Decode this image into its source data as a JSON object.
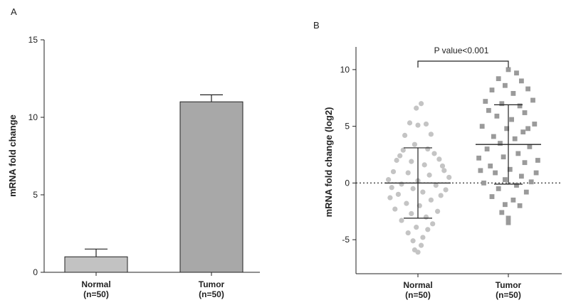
{
  "chart_data": [
    {
      "panel_label": "A",
      "type": "bar",
      "ylabel": "mRNA fold change",
      "ylim": [
        0,
        15
      ],
      "yticks": [
        0,
        5,
        10,
        15
      ],
      "categories": [
        "Normal\n(n=50)",
        "Tumor\n(n=50)"
      ],
      "values": [
        1.0,
        11.0
      ],
      "errors": [
        0.5,
        0.45
      ],
      "bar_colors": [
        "#c2c2c2",
        "#a8a8a8"
      ],
      "grid": false
    },
    {
      "panel_label": "B",
      "type": "scatter",
      "ylabel": "mRNA fold change (log2)",
      "ylim": [
        -8,
        12
      ],
      "yticks": [
        -5,
        0,
        5,
        10
      ],
      "categories": [
        "Normal\n(n=50)",
        "Tumor\n(n=50)"
      ],
      "annotation": "P value<0.001",
      "reference_line": 0,
      "grid": false,
      "groups": [
        {
          "marker": "circle",
          "color": "#c4c4c4",
          "mean": 0.0,
          "sd": 3.1,
          "points": [
            [
              0.02,
              7.0
            ],
            [
              -0.01,
              6.6
            ],
            [
              -0.05,
              5.3
            ],
            [
              0.05,
              5.2
            ],
            [
              0.0,
              5.1
            ],
            [
              -0.08,
              4.2
            ],
            [
              0.08,
              4.3
            ],
            [
              -0.02,
              3.4
            ],
            [
              0.06,
              3.0
            ],
            [
              -0.09,
              2.9
            ],
            [
              0.1,
              2.6
            ],
            [
              -0.13,
              2.0
            ],
            [
              0.13,
              2.1
            ],
            [
              -0.04,
              1.9
            ],
            [
              0.04,
              1.6
            ],
            [
              -0.15,
              1.0
            ],
            [
              0.16,
              1.1
            ],
            [
              -0.06,
              0.9
            ],
            [
              0.07,
              0.7
            ],
            [
              0.19,
              0.5
            ],
            [
              -0.18,
              0.3
            ],
            [
              0.0,
              0.2
            ],
            [
              -0.1,
              -0.1
            ],
            [
              0.11,
              -0.2
            ],
            [
              -0.03,
              -0.5
            ],
            [
              0.03,
              -0.8
            ],
            [
              -0.12,
              -1.0
            ],
            [
              0.14,
              -1.1
            ],
            [
              -0.17,
              -1.3
            ],
            [
              0.08,
              -1.5
            ],
            [
              -0.07,
              -1.8
            ],
            [
              0.01,
              -2.0
            ],
            [
              -0.14,
              -2.3
            ],
            [
              0.12,
              -2.5
            ],
            [
              -0.04,
              -2.7
            ],
            [
              0.05,
              -3.0
            ],
            [
              -0.1,
              -3.3
            ],
            [
              0.09,
              -3.6
            ],
            [
              -0.01,
              -3.9
            ],
            [
              0.06,
              -4.1
            ],
            [
              -0.06,
              -4.4
            ],
            [
              0.03,
              -4.8
            ],
            [
              -0.03,
              -5.1
            ],
            [
              0.02,
              -5.5
            ],
            [
              -0.02,
              -5.9
            ],
            [
              0.0,
              -6.1
            ],
            [
              0.15,
              1.5
            ],
            [
              -0.16,
              -0.4
            ],
            [
              0.17,
              -0.6
            ],
            [
              -0.11,
              2.4
            ]
          ]
        },
        {
          "marker": "square",
          "color": "#9a9a9a",
          "mean": 3.4,
          "sd": 3.5,
          "points": [
            [
              0.0,
              10.0
            ],
            [
              0.05,
              9.7
            ],
            [
              -0.06,
              9.2
            ],
            [
              0.08,
              9.0
            ],
            [
              -0.02,
              8.6
            ],
            [
              0.12,
              8.3
            ],
            [
              -0.1,
              8.2
            ],
            [
              0.03,
              7.9
            ],
            [
              -0.14,
              7.2
            ],
            [
              0.15,
              7.3
            ],
            [
              -0.04,
              7.0
            ],
            [
              0.07,
              6.8
            ],
            [
              -0.12,
              6.4
            ],
            [
              0.1,
              6.2
            ],
            [
              -0.07,
              5.9
            ],
            [
              0.02,
              5.6
            ],
            [
              -0.16,
              5.0
            ],
            [
              0.16,
              5.2
            ],
            [
              -0.01,
              4.8
            ],
            [
              0.09,
              4.5
            ],
            [
              -0.09,
              4.1
            ],
            [
              0.04,
              3.9
            ],
            [
              -0.05,
              3.5
            ],
            [
              0.13,
              3.2
            ],
            [
              -0.13,
              3.0
            ],
            [
              0.18,
              2.0
            ],
            [
              -0.18,
              2.2
            ],
            [
              0.06,
              2.6
            ],
            [
              -0.03,
              2.3
            ],
            [
              0.1,
              1.8
            ],
            [
              -0.11,
              1.5
            ],
            [
              0.01,
              1.2
            ],
            [
              -0.08,
              0.9
            ],
            [
              0.08,
              0.6
            ],
            [
              -0.02,
              0.3
            ],
            [
              0.14,
              0.1
            ],
            [
              -0.15,
              0.0
            ],
            [
              0.05,
              -0.2
            ],
            [
              -0.06,
              -0.5
            ],
            [
              0.11,
              -0.8
            ],
            [
              -0.1,
              -1.2
            ],
            [
              0.03,
              -1.5
            ],
            [
              -0.02,
              -1.9
            ],
            [
              0.07,
              -2.0
            ],
            [
              -0.04,
              -2.6
            ],
            [
              0.0,
              -3.1
            ],
            [
              0.0,
              -3.5
            ],
            [
              0.17,
              0.9
            ],
            [
              -0.17,
              1.1
            ],
            [
              0.12,
              4.8
            ]
          ]
        }
      ]
    }
  ]
}
